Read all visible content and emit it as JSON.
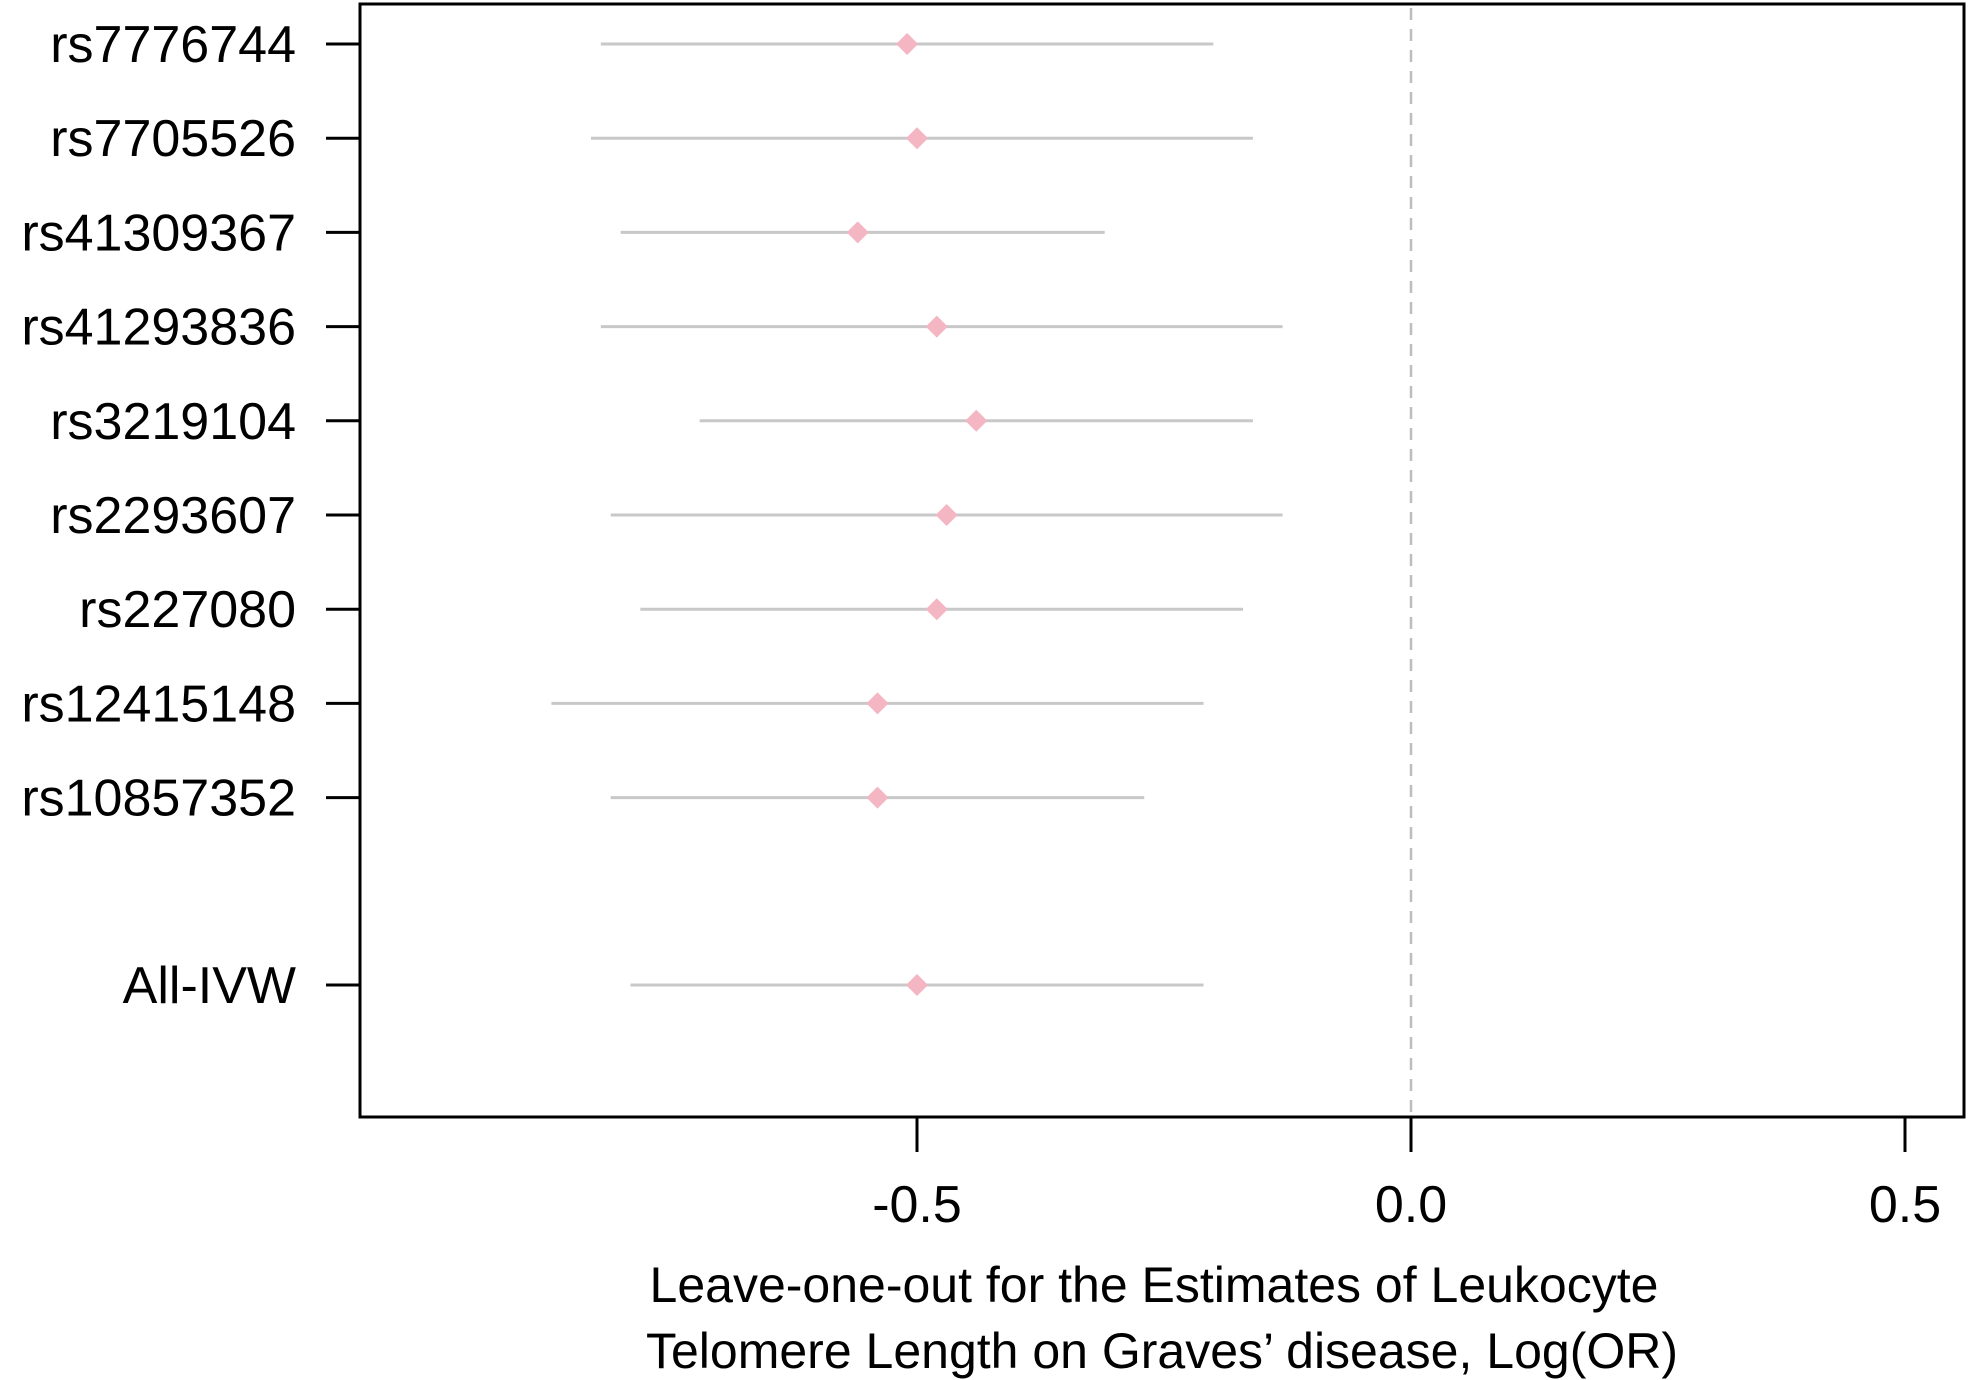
{
  "chart_data": {
    "type": "forest",
    "title": "",
    "xlabel_lines": [
      "Leave-one-out for the Estimates of Leukocyte",
      "Telomere Length on Graves’ disease, Log(OR)"
    ],
    "ylabel": "",
    "xlim": [
      -1.05,
      0.57
    ],
    "xticks": [
      -0.5,
      0.0,
      0.5
    ],
    "xtick_labels": [
      "-0.5",
      "0.0",
      "0.5"
    ],
    "reference_line": 0.0,
    "grid": false,
    "colors": {
      "point": "#f4b6c2",
      "interval": "#c8c8c8",
      "reference": "#bdbdbd",
      "frame": "#000000"
    },
    "rows": [
      {
        "label": "rs7776744",
        "estimate": -0.51,
        "lower": -0.82,
        "upper": -0.2
      },
      {
        "label": "rs7705526",
        "estimate": -0.5,
        "lower": -0.83,
        "upper": -0.16
      },
      {
        "label": "rs41309367",
        "estimate": -0.56,
        "lower": -0.8,
        "upper": -0.31
      },
      {
        "label": "rs41293836",
        "estimate": -0.48,
        "lower": -0.82,
        "upper": -0.13
      },
      {
        "label": "rs3219104",
        "estimate": -0.44,
        "lower": -0.72,
        "upper": -0.16
      },
      {
        "label": "rs2293607",
        "estimate": -0.47,
        "lower": -0.81,
        "upper": -0.13
      },
      {
        "label": "rs227080",
        "estimate": -0.48,
        "lower": -0.78,
        "upper": -0.17
      },
      {
        "label": "rs12415148",
        "estimate": -0.54,
        "lower": -0.87,
        "upper": -0.21
      },
      {
        "label": "rs10857352",
        "estimate": -0.54,
        "lower": -0.81,
        "upper": -0.27
      },
      {
        "label": "All-IVW",
        "estimate": -0.5,
        "lower": -0.79,
        "upper": -0.21,
        "summary": true
      }
    ]
  }
}
